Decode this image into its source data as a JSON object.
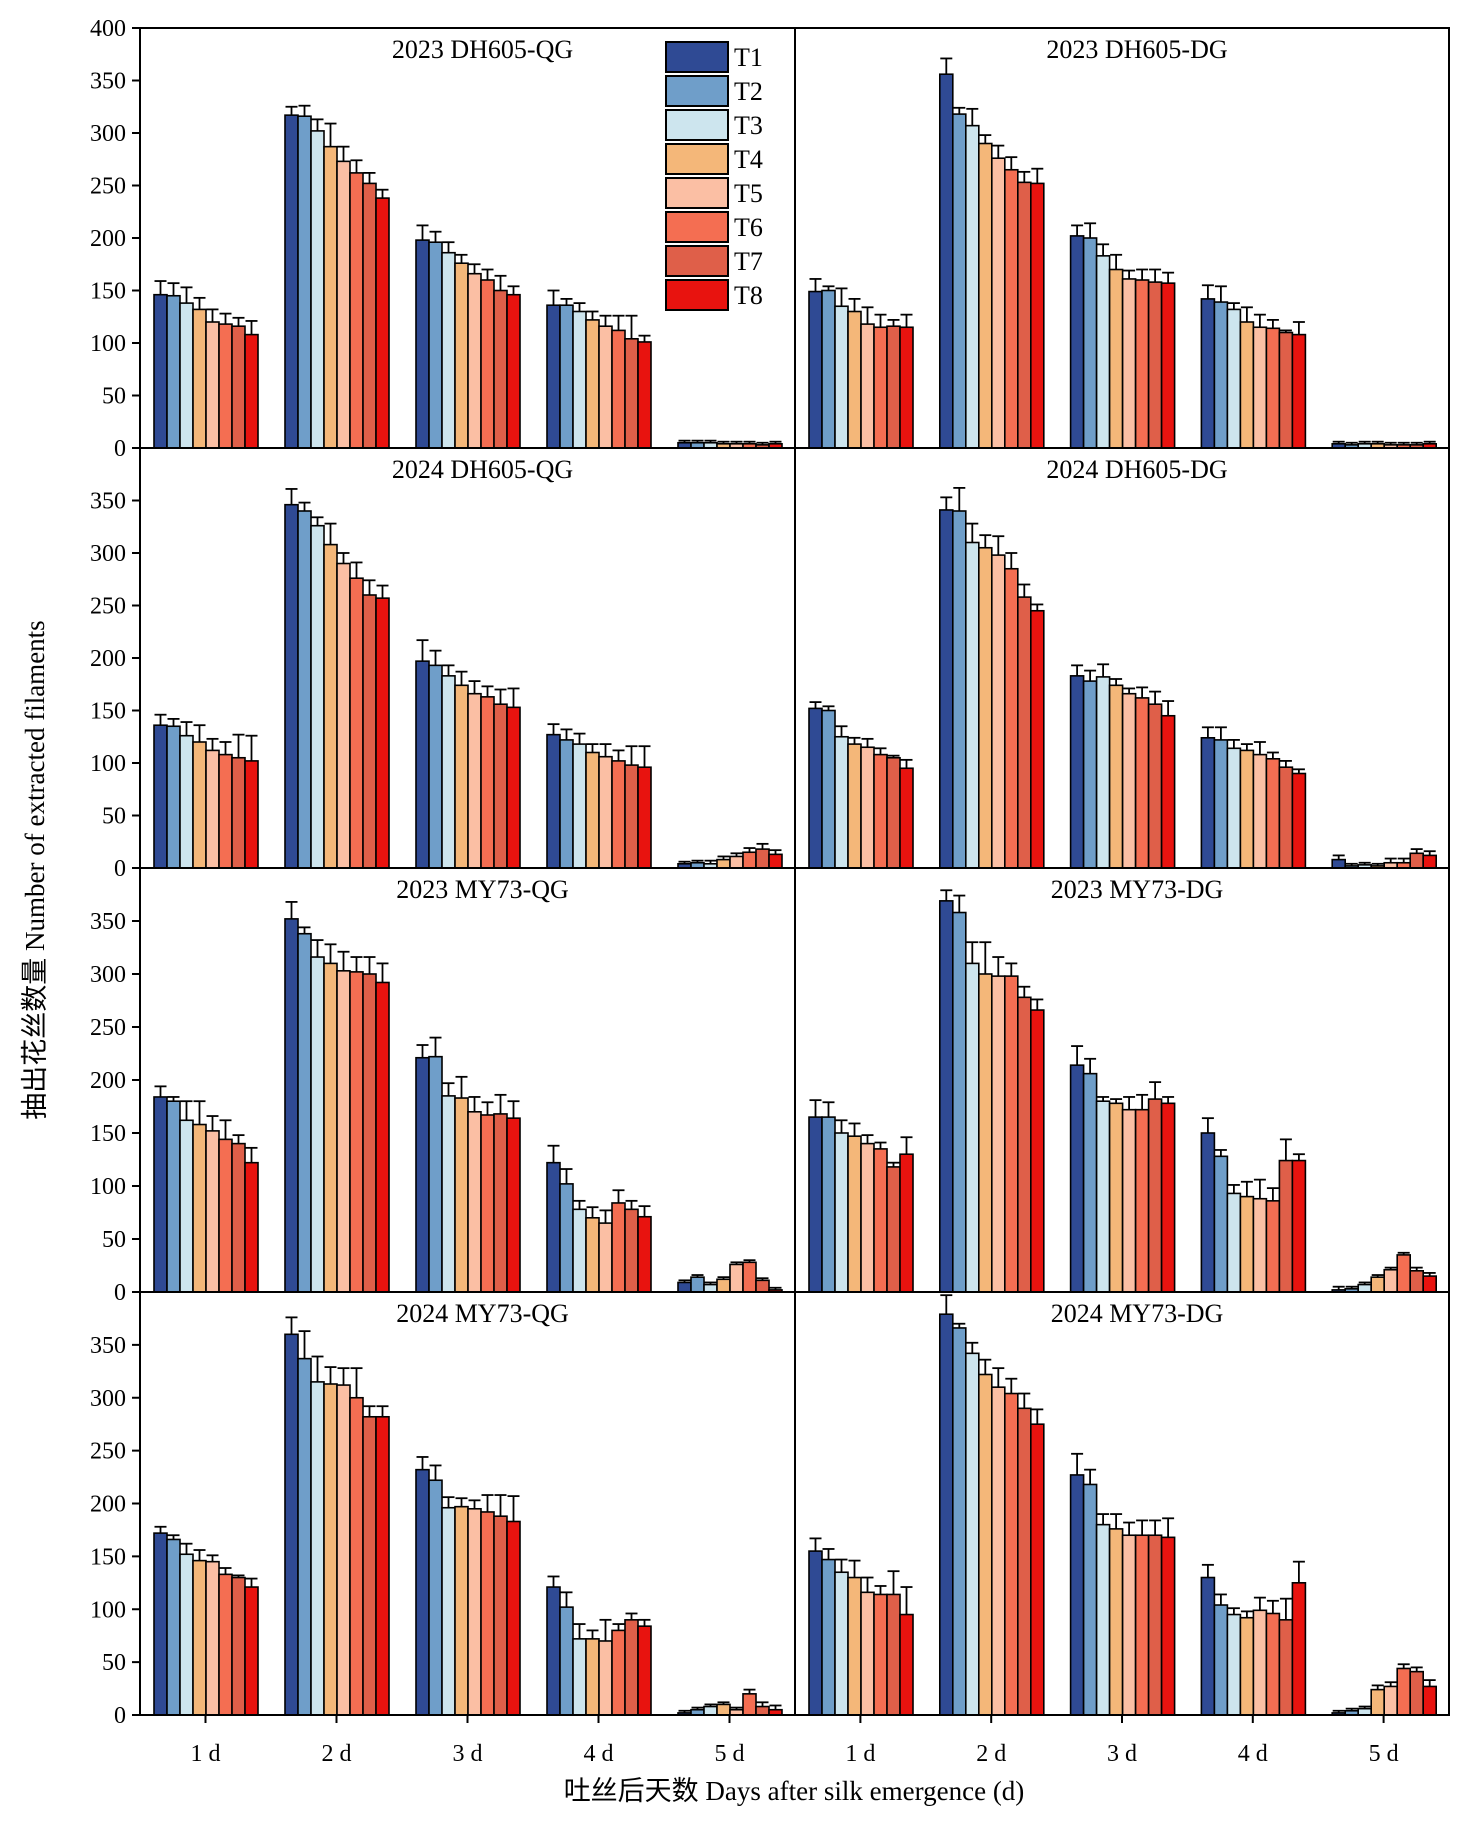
{
  "chart_data": {
    "type": "bar",
    "layout": "4 rows x 2 columns of grouped bar panels with error bars",
    "xlabel": "吐丝后天数 Days after silk emergence (d)",
    "ylabel": "抽出花丝数量 Number of extracted filaments",
    "categories": [
      "1 d",
      "2 d",
      "3 d",
      "4 d",
      "5 d"
    ],
    "series_names": [
      "T1",
      "T2",
      "T3",
      "T4",
      "T5",
      "T6",
      "T7",
      "T8"
    ],
    "series_colors": [
      "#2f4a94",
      "#6f9ec9",
      "#cde5ee",
      "#f4b779",
      "#fbbfa4",
      "#f46e52",
      "#df5f49",
      "#e8130f"
    ],
    "panels": [
      {
        "title": "2023 DH605-QG",
        "ylim": [
          0,
          400
        ],
        "yticks": [
          0,
          50,
          100,
          150,
          200,
          250,
          300,
          350,
          400
        ],
        "values": [
          [
            146,
            145,
            138,
            132,
            120,
            118,
            116,
            108
          ],
          [
            317,
            316,
            302,
            287,
            273,
            262,
            252,
            238
          ],
          [
            198,
            196,
            186,
            176,
            166,
            160,
            150,
            146
          ],
          [
            136,
            136,
            130,
            122,
            116,
            112,
            104,
            101
          ],
          [
            5,
            5,
            5,
            4,
            4,
            4,
            3,
            4
          ]
        ],
        "errors": [
          [
            13,
            12,
            15,
            11,
            12,
            10,
            8,
            13
          ],
          [
            8,
            10,
            11,
            22,
            14,
            12,
            10,
            8
          ],
          [
            14,
            10,
            10,
            8,
            9,
            10,
            14,
            8
          ],
          [
            14,
            6,
            8,
            8,
            10,
            14,
            22,
            6
          ],
          [
            2,
            2,
            2,
            2,
            2,
            2,
            2,
            2
          ]
        ]
      },
      {
        "title": "2023 DH605-DG",
        "ylim": [
          0,
          400
        ],
        "yticks": [
          0,
          50,
          100,
          150,
          200,
          250,
          300,
          350,
          400
        ],
        "values": [
          [
            149,
            150,
            135,
            130,
            118,
            115,
            116,
            115
          ],
          [
            356,
            318,
            307,
            290,
            276,
            265,
            253,
            252
          ],
          [
            202,
            200,
            183,
            170,
            161,
            160,
            158,
            157
          ],
          [
            142,
            139,
            132,
            120,
            115,
            114,
            110,
            108
          ],
          [
            4,
            3,
            4,
            4,
            3,
            3,
            3,
            4
          ]
        ],
        "errors": [
          [
            12,
            4,
            17,
            12,
            16,
            12,
            6,
            12
          ],
          [
            15,
            6,
            16,
            8,
            12,
            12,
            10,
            14
          ],
          [
            10,
            14,
            11,
            14,
            8,
            10,
            12,
            10
          ],
          [
            13,
            15,
            6,
            14,
            12,
            8,
            2,
            12
          ],
          [
            2,
            2,
            2,
            2,
            2,
            2,
            2,
            2
          ]
        ]
      },
      {
        "title": "2024 DH605-QG",
        "ylim": [
          0,
          400
        ],
        "yticks": [
          0,
          50,
          100,
          150,
          200,
          250,
          300,
          350
        ],
        "values": [
          [
            136,
            135,
            126,
            120,
            112,
            108,
            105,
            102
          ],
          [
            346,
            340,
            326,
            308,
            290,
            276,
            260,
            257
          ],
          [
            197,
            193,
            183,
            174,
            166,
            163,
            156,
            153
          ],
          [
            127,
            122,
            118,
            110,
            106,
            102,
            98,
            96
          ],
          [
            4,
            5,
            4,
            8,
            11,
            15,
            18,
            13
          ]
        ],
        "errors": [
          [
            10,
            7,
            13,
            16,
            11,
            12,
            22,
            24
          ],
          [
            15,
            8,
            8,
            20,
            10,
            15,
            14,
            12
          ],
          [
            20,
            14,
            10,
            13,
            12,
            10,
            14,
            18
          ],
          [
            10,
            10,
            10,
            8,
            12,
            10,
            18,
            20
          ],
          [
            2,
            2,
            3,
            3,
            3,
            4,
            5,
            4
          ]
        ]
      },
      {
        "title": "2024 DH605-DG",
        "ylim": [
          0,
          400
        ],
        "yticks": [
          0,
          50,
          100,
          150,
          200,
          250,
          300,
          350
        ],
        "values": [
          [
            152,
            150,
            125,
            118,
            115,
            108,
            105,
            95
          ],
          [
            341,
            340,
            310,
            305,
            298,
            285,
            258,
            245
          ],
          [
            183,
            178,
            182,
            174,
            166,
            162,
            156,
            145
          ],
          [
            124,
            122,
            114,
            112,
            108,
            104,
            96,
            90
          ],
          [
            8,
            2,
            3,
            2,
            5,
            5,
            14,
            12
          ]
        ],
        "errors": [
          [
            6,
            4,
            10,
            6,
            8,
            6,
            2,
            8
          ],
          [
            12,
            22,
            18,
            12,
            18,
            15,
            12,
            6
          ],
          [
            10,
            10,
            12,
            6,
            5,
            10,
            12,
            14
          ],
          [
            10,
            12,
            8,
            6,
            12,
            6,
            6,
            4
          ],
          [
            4,
            2,
            2,
            2,
            4,
            4,
            4,
            4
          ]
        ]
      },
      {
        "title": "2023 MY73-QG",
        "ylim": [
          0,
          400
        ],
        "yticks": [
          0,
          50,
          100,
          150,
          200,
          250,
          300,
          350
        ],
        "values": [
          [
            184,
            180,
            162,
            158,
            152,
            144,
            140,
            122
          ],
          [
            352,
            338,
            316,
            310,
            303,
            302,
            300,
            292
          ],
          [
            221,
            222,
            185,
            183,
            170,
            167,
            168,
            164
          ],
          [
            122,
            102,
            78,
            70,
            65,
            84,
            78,
            71
          ],
          [
            9,
            14,
            7,
            12,
            26,
            28,
            11,
            2
          ]
        ],
        "errors": [
          [
            10,
            4,
            18,
            22,
            14,
            18,
            8,
            14
          ],
          [
            16,
            6,
            16,
            18,
            18,
            14,
            16,
            18
          ],
          [
            12,
            18,
            12,
            20,
            14,
            12,
            18,
            16
          ],
          [
            16,
            14,
            8,
            10,
            12,
            12,
            8,
            10
          ],
          [
            2,
            2,
            2,
            2,
            2,
            2,
            2,
            2
          ]
        ]
      },
      {
        "title": "2023 MY73-DG",
        "ylim": [
          0,
          400
        ],
        "yticks": [
          0,
          50,
          100,
          150,
          200,
          250,
          300,
          350
        ],
        "values": [
          [
            165,
            165,
            150,
            147,
            140,
            135,
            118,
            130
          ],
          [
            369,
            358,
            310,
            300,
            298,
            298,
            278,
            266
          ],
          [
            214,
            206,
            180,
            178,
            172,
            172,
            182,
            178
          ],
          [
            150,
            128,
            93,
            90,
            88,
            86,
            124,
            124
          ],
          [
            2,
            3,
            7,
            14,
            21,
            35,
            20,
            15
          ]
        ],
        "errors": [
          [
            16,
            14,
            12,
            12,
            8,
            6,
            4,
            16
          ],
          [
            10,
            16,
            20,
            30,
            18,
            12,
            10,
            10
          ],
          [
            18,
            14,
            4,
            4,
            12,
            14,
            16,
            6
          ],
          [
            14,
            6,
            8,
            14,
            18,
            12,
            20,
            6
          ],
          [
            3,
            2,
            2,
            2,
            2,
            2,
            3,
            3
          ]
        ]
      },
      {
        "title": "2024 MY73-QG",
        "ylim": [
          0,
          400
        ],
        "yticks": [
          0,
          50,
          100,
          150,
          200,
          250,
          300,
          350
        ],
        "values": [
          [
            172,
            166,
            152,
            146,
            145,
            133,
            130,
            121
          ],
          [
            360,
            337,
            315,
            313,
            312,
            300,
            282,
            282
          ],
          [
            232,
            222,
            196,
            197,
            195,
            192,
            188,
            183
          ],
          [
            121,
            102,
            72,
            72,
            70,
            80,
            90,
            84
          ],
          [
            2,
            5,
            8,
            10,
            5,
            20,
            8,
            5
          ]
        ],
        "errors": [
          [
            6,
            4,
            10,
            10,
            6,
            6,
            2,
            8
          ],
          [
            16,
            26,
            24,
            16,
            16,
            28,
            10,
            10
          ],
          [
            12,
            14,
            10,
            8,
            8,
            16,
            20,
            24
          ],
          [
            10,
            14,
            14,
            8,
            20,
            6,
            6,
            6
          ],
          [
            2,
            2,
            2,
            2,
            2,
            4,
            4,
            4
          ]
        ]
      },
      {
        "title": "2024 MY73-DG",
        "ylim": [
          0,
          400
        ],
        "yticks": [
          0,
          50,
          100,
          150,
          200,
          250,
          300,
          350
        ],
        "values": [
          [
            155,
            147,
            135,
            130,
            116,
            114,
            114,
            95
          ],
          [
            379,
            366,
            342,
            322,
            310,
            304,
            290,
            275
          ],
          [
            227,
            218,
            180,
            176,
            170,
            170,
            170,
            168
          ],
          [
            130,
            104,
            95,
            92,
            99,
            96,
            90,
            125
          ],
          [
            2,
            4,
            6,
            24,
            27,
            44,
            41,
            27
          ]
        ],
        "errors": [
          [
            12,
            10,
            12,
            16,
            14,
            8,
            22,
            26
          ],
          [
            18,
            4,
            10,
            14,
            18,
            14,
            14,
            14
          ],
          [
            20,
            14,
            10,
            14,
            12,
            14,
            14,
            18
          ],
          [
            12,
            10,
            6,
            6,
            12,
            12,
            20,
            20
          ],
          [
            2,
            2,
            2,
            4,
            4,
            4,
            4,
            6
          ]
        ]
      }
    ]
  }
}
